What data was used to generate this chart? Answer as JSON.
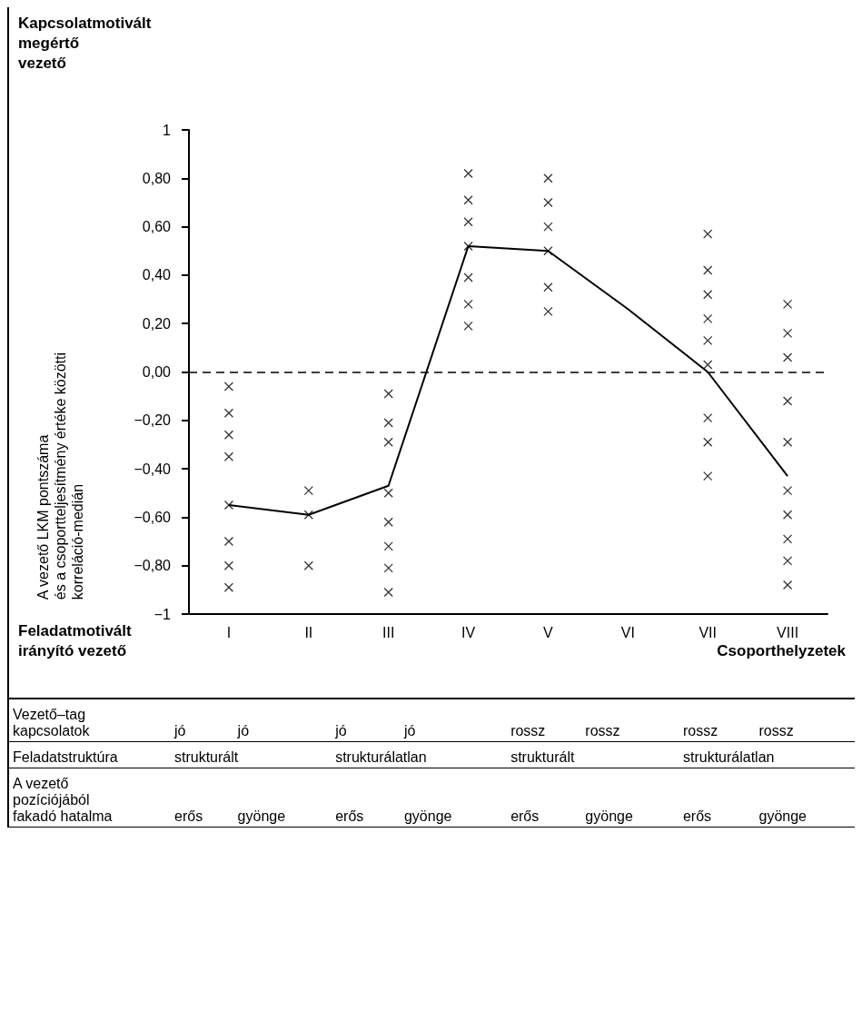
{
  "chart_data": {
    "type": "line",
    "xlabel": "Csoporthelyzetek",
    "ylabel": "A vezető LKM pontszáma\nés a csoportteljesítmény értéke közötti\nkorreláció-medián",
    "categories": [
      "I",
      "II",
      "III",
      "IV",
      "V",
      "VI",
      "VII",
      "VIII"
    ],
    "ylim": [
      -1,
      1
    ],
    "yticks": [
      {
        "value": -1,
        "label": "−1"
      },
      {
        "value": -0.8,
        "label": "−0,80"
      },
      {
        "value": -0.6,
        "label": "−0,60"
      },
      {
        "value": -0.4,
        "label": "−0,40"
      },
      {
        "value": -0.2,
        "label": "−0,20"
      },
      {
        "value": 0,
        "label": "0,00"
      },
      {
        "value": 0.2,
        "label": "0,20"
      },
      {
        "value": 0.4,
        "label": "0,40"
      },
      {
        "value": 0.6,
        "label": "0,60"
      },
      {
        "value": 0.8,
        "label": "0,80"
      },
      {
        "value": 1,
        "label": "1"
      }
    ],
    "series": [
      {
        "type": "scatter",
        "color": "#000000",
        "marker": "cross",
        "x": [
          "I",
          "I",
          "I",
          "I",
          "I",
          "I",
          "I",
          "I",
          "II",
          "II",
          "II",
          "III",
          "III",
          "III",
          "III",
          "III",
          "III",
          "III",
          "III",
          "IV",
          "IV",
          "IV",
          "IV",
          "IV",
          "IV",
          "IV",
          "V",
          "V",
          "V",
          "V",
          "V",
          "V",
          "VII",
          "VII",
          "VII",
          "VII",
          "VII",
          "VII",
          "VII",
          "VII",
          "VII",
          "VIII",
          "VIII",
          "VIII",
          "VIII",
          "VIII",
          "VIII",
          "VIII",
          "VIII",
          "VIII",
          "VIII"
        ],
        "values": [
          -0.06,
          -0.17,
          -0.26,
          -0.35,
          -0.55,
          -0.7,
          -0.8,
          -0.89,
          -0.49,
          -0.59,
          -0.8,
          -0.09,
          -0.21,
          -0.29,
          -0.5,
          -0.62,
          -0.72,
          -0.81,
          -0.91,
          0.82,
          0.71,
          0.62,
          0.52,
          0.39,
          0.28,
          0.19,
          0.8,
          0.7,
          0.6,
          0.5,
          0.35,
          0.25,
          0.57,
          0.42,
          0.32,
          0.22,
          0.13,
          0.03,
          -0.19,
          -0.29,
          -0.43,
          0.28,
          0.16,
          0.06,
          -0.12,
          -0.29,
          -0.49,
          -0.59,
          -0.69,
          -0.78,
          -0.88
        ]
      },
      {
        "type": "line",
        "color": "#000000",
        "marker": "none",
        "values": [
          -0.55,
          -0.59,
          -0.47,
          0.52,
          0.5,
          0.26,
          0.0,
          -0.43
        ]
      }
    ],
    "ref_lines": [
      {
        "axis": "y",
        "value": 0,
        "color": "#000000",
        "line_style": "dashed"
      }
    ],
    "annotations": [
      "Kapcsolatmotivált\nmegértő\nvezető",
      "Feladatmotivált\nirányító vezető",
      "Vezető–tag\nkapcsolatok",
      "jó",
      "jó",
      "jó",
      "jó",
      "rossz",
      "rossz",
      "rossz",
      "rossz",
      "Feladatstruktúra",
      "strukturált",
      "strukturálatlan",
      "strukturált",
      "strukturálatlan",
      "A vezető\npozíciójából\nfakadó hatalma",
      "erős",
      "gyönge",
      "erős",
      "gyönge",
      "erős",
      "gyönge",
      "erős",
      "gyönge"
    ]
  }
}
